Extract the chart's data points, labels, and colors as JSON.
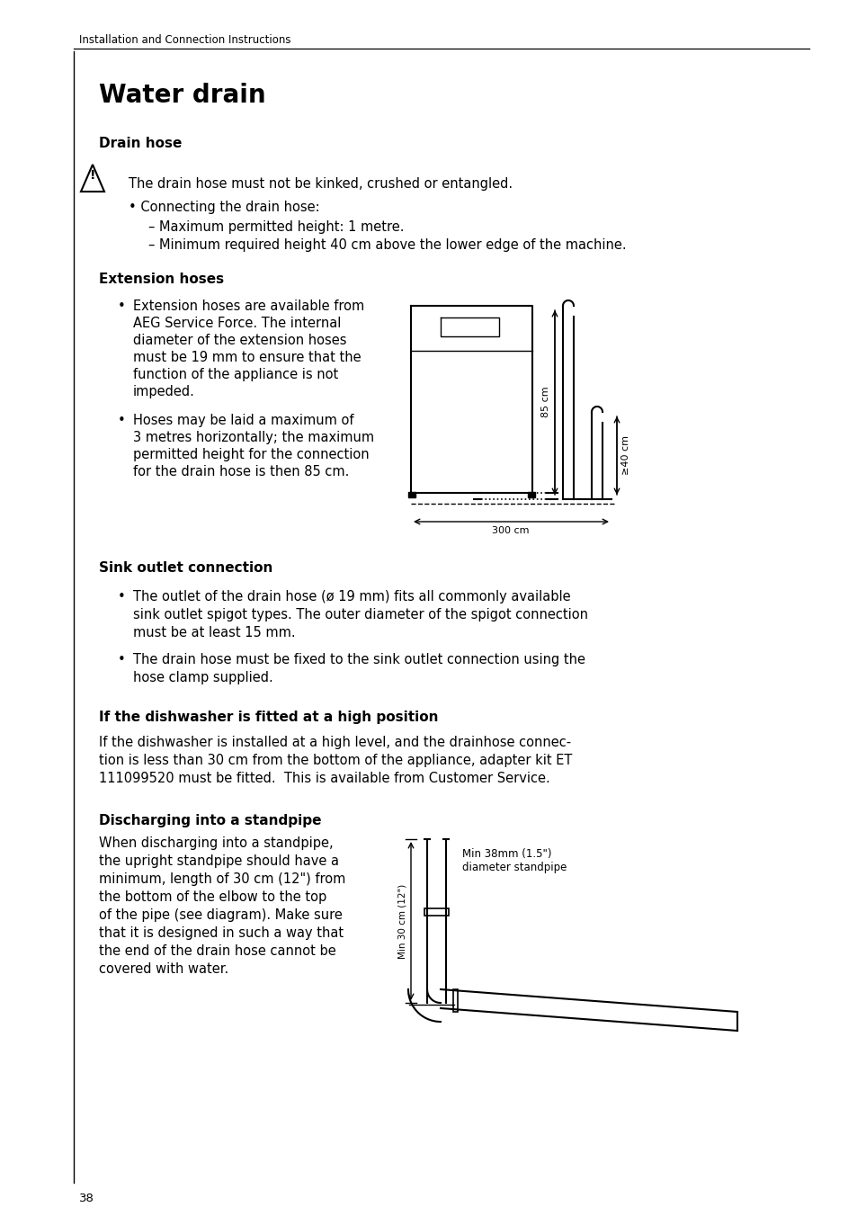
{
  "background_color": "#ffffff",
  "page_number": "38",
  "header_text": "Installation and Connection Instructions",
  "title": "Water drain",
  "section1_title": "Drain hose",
  "warning_text": "The drain hose must not be kinked, crushed or entangled.",
  "drain_hose_b0": "Connecting the drain hose:",
  "drain_hose_b1": "– Maximum permitted height: 1 metre.",
  "drain_hose_b2": "– Minimum required height 40 cm above the lower edge of the machine.",
  "section2_title": "Extension hoses",
  "ext_b0_line1": "Extension hoses are available from",
  "ext_b0_line2": "AEG Service Force. The internal",
  "ext_b0_line3": "diameter of the extension hoses",
  "ext_b0_line4": "must be 19 mm to ensure that the",
  "ext_b0_line5": "function of the appliance is not",
  "ext_b0_line6": "impeded.",
  "ext_b1_line1": "Hoses may be laid a maximum of",
  "ext_b1_line2": "3 metres horizontally; the maximum",
  "ext_b1_line3": "permitted height for the connection",
  "ext_b1_line4": "for the drain hose is then 85 cm.",
  "section3_title": "Sink outlet connection",
  "sink_b0_line1": "The outlet of the drain hose (ø 19 mm) fits all commonly available",
  "sink_b0_line2": "sink outlet spigot types. The outer diameter of the spigot connection",
  "sink_b0_line3": "must be at least 15 mm.",
  "sink_b1_line1": "The drain hose must be fixed to the sink outlet connection using the",
  "sink_b1_line2": "hose clamp supplied.",
  "section4_title": "If the dishwasher is fitted at a high position",
  "section4_line1": "If the dishwasher is installed at a high level, and the drainhose connec-",
  "section4_line2": "tion is less than 30 cm from the bottom of the appliance, adapter kit ET",
  "section4_line3": "111099520 must be fitted.  This is available from Customer Service.",
  "section5_title": "Discharging into a standpipe",
  "section5_line1": "When discharging into a standpipe,",
  "section5_line2": "the upright standpipe should have a",
  "section5_line3": "minimum, length of 30 cm (12\") from",
  "section5_line4": "the bottom of the elbow to the top",
  "section5_line5": "of the pipe (see diagram). Make sure",
  "section5_line6": "that it is designed in such a way that",
  "section5_line7": "the end of the drain hose cannot be",
  "section5_line8": "covered with water.",
  "diag1_85cm": "85 cm",
  "diag1_40cm": "≥40 cm",
  "diag1_300cm": "300 cm",
  "diag2_min38_line1": "Min 38mm (1.5\")",
  "diag2_min38_line2": "diameter standpipe",
  "diag2_min30": "Min 30 cm (12\")"
}
